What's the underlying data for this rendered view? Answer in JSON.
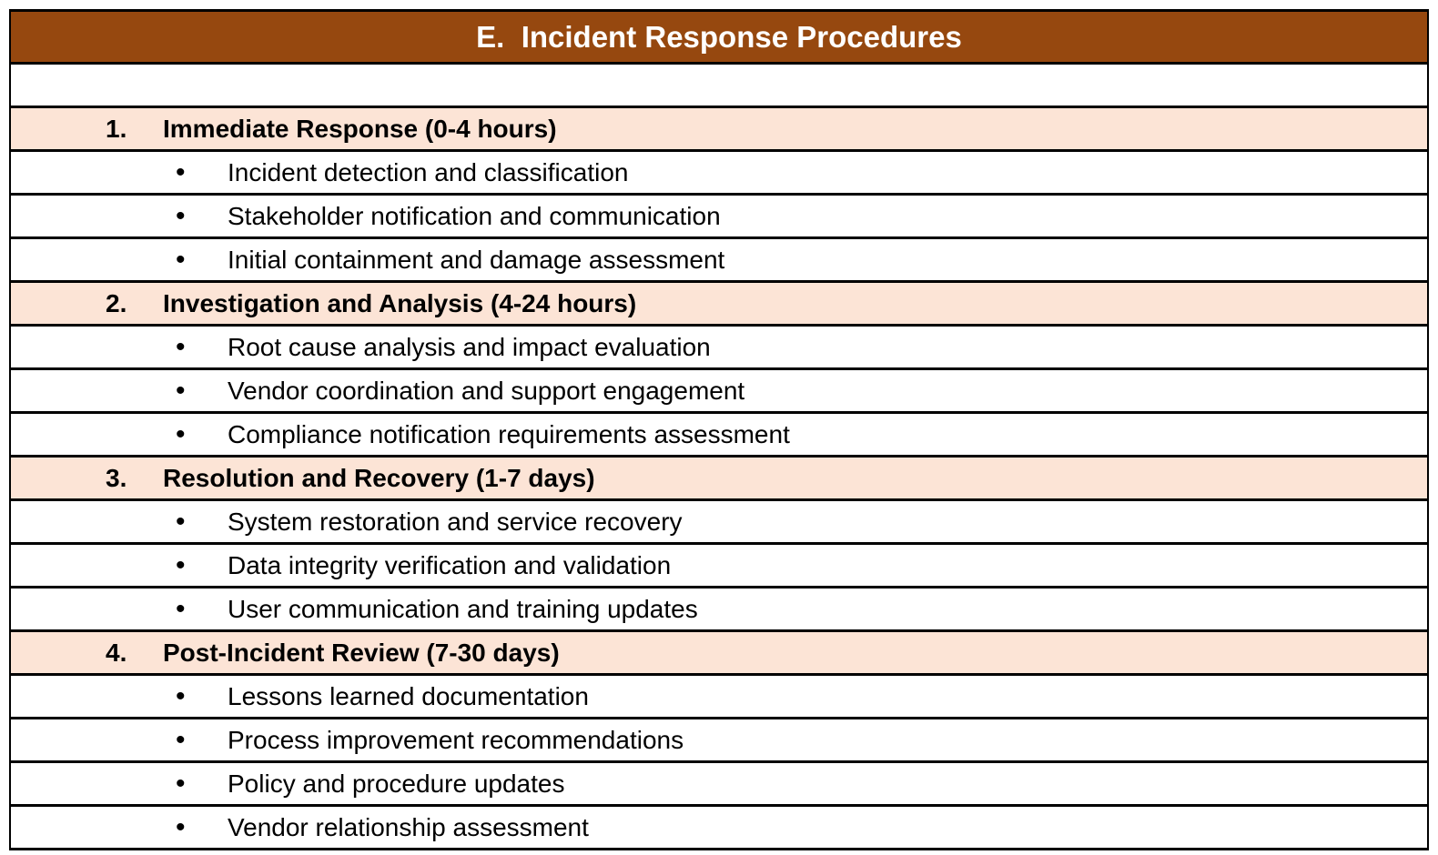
{
  "header": {
    "title": "E.  Incident Response Procedures"
  },
  "bullet_glyph": "•",
  "colors": {
    "header_bg": "#96480F",
    "header_text": "#FFFFFF",
    "section_bg": "#FCE4D6",
    "body_text": "#000000",
    "border": "#000000",
    "page_bg": "#FFFFFF"
  },
  "sections": [
    {
      "number": "1.",
      "title": "Immediate Response (0-4 hours)",
      "items": [
        "Incident detection and classification",
        "Stakeholder notification and communication",
        "Initial containment and damage assessment"
      ]
    },
    {
      "number": "2.",
      "title": "Investigation and Analysis (4-24 hours)",
      "items": [
        "Root cause analysis and impact evaluation",
        "Vendor coordination and support engagement",
        "Compliance notification requirements assessment"
      ]
    },
    {
      "number": "3.",
      "title": "Resolution and Recovery (1-7 days)",
      "items": [
        "System restoration and service recovery",
        "Data integrity verification and validation",
        "User communication and training updates"
      ]
    },
    {
      "number": "4.",
      "title": "Post-Incident Review (7-30 days)",
      "items": [
        "Lessons learned documentation",
        "Process improvement recommendations",
        "Policy and procedure updates",
        "Vendor relationship assessment"
      ]
    }
  ]
}
